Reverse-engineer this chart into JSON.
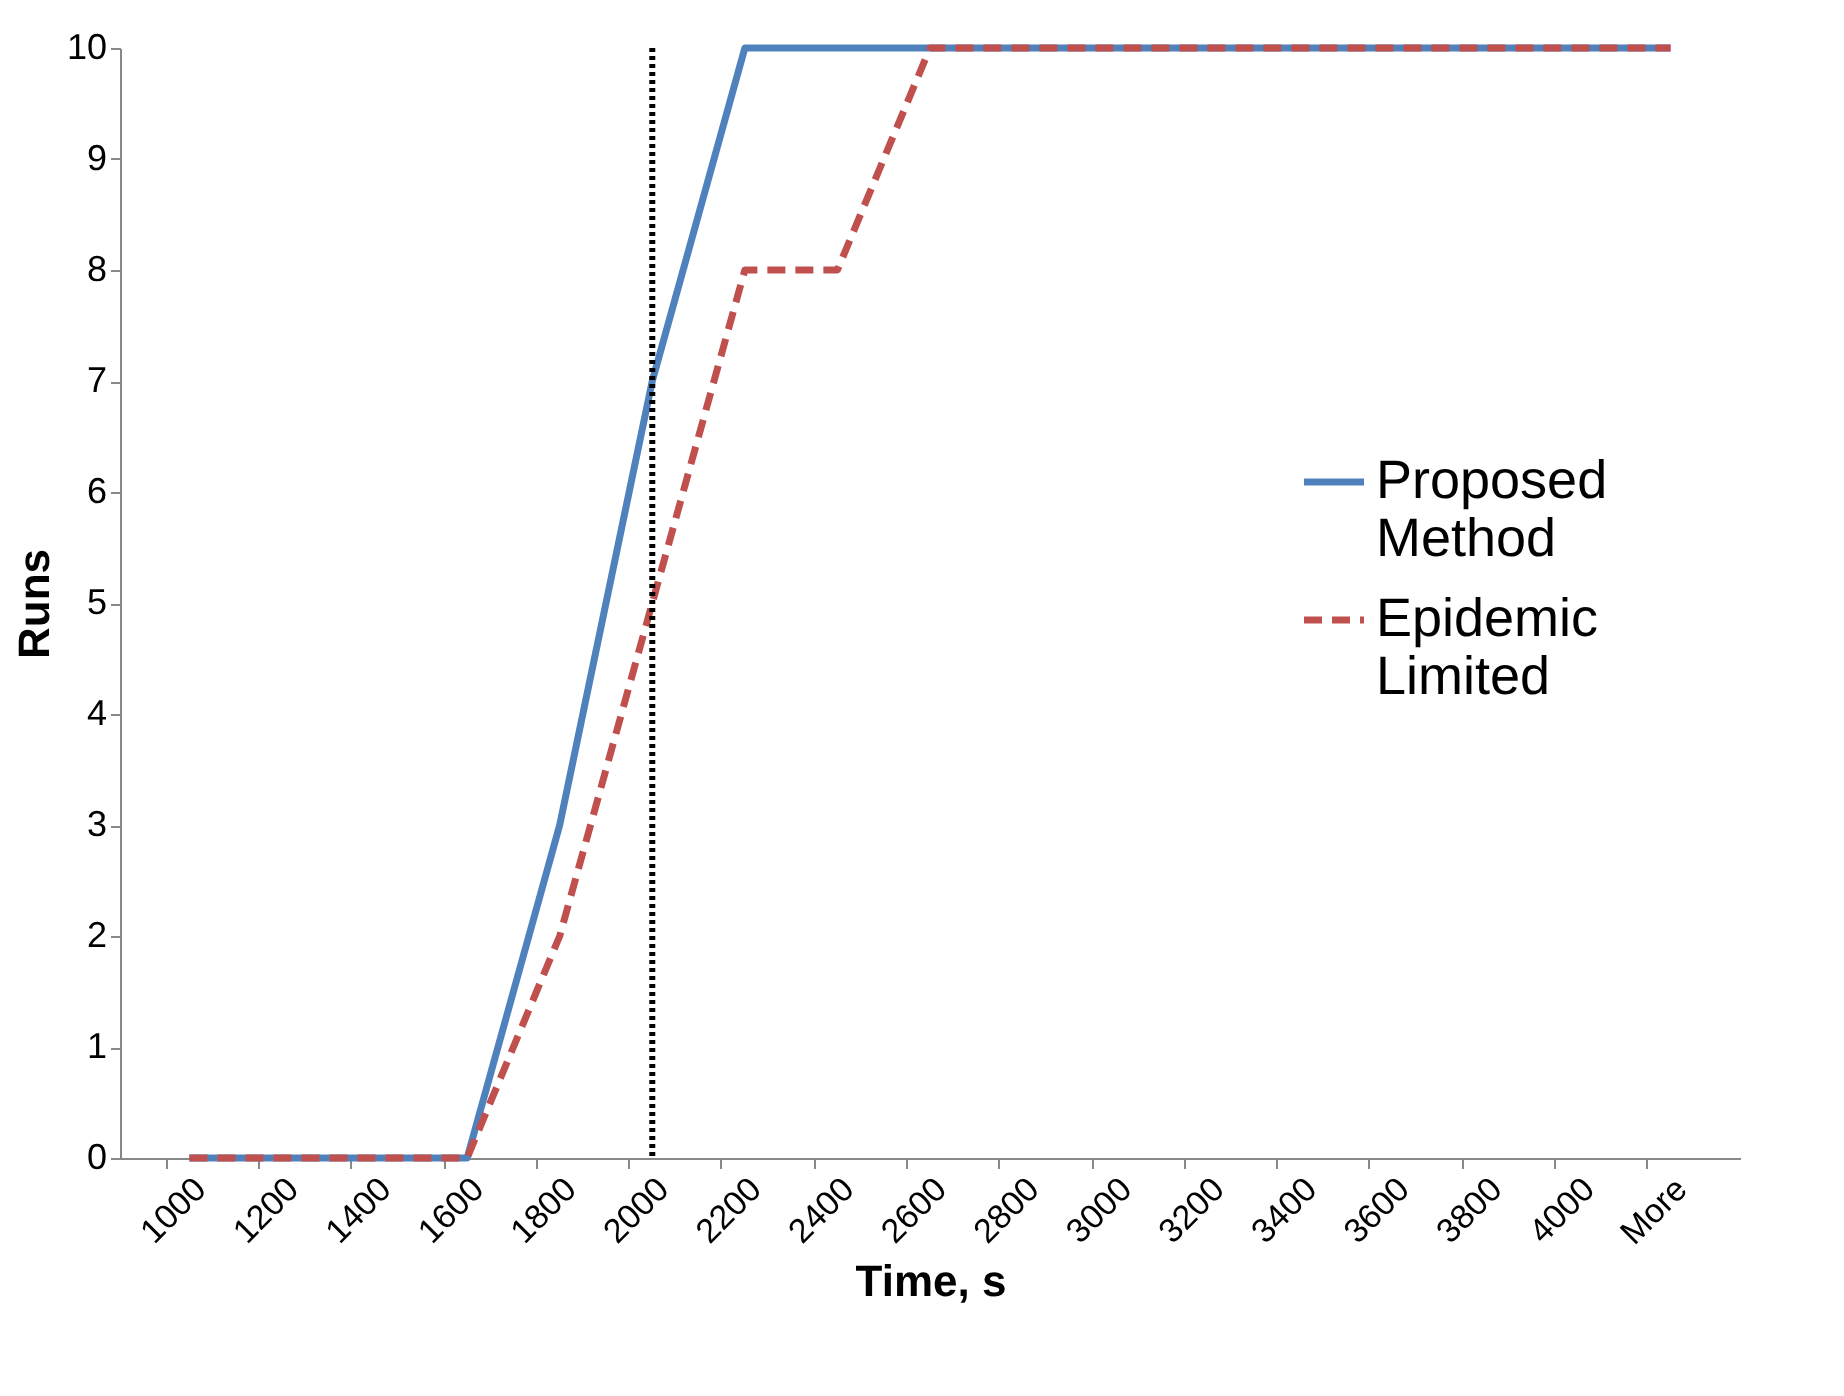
{
  "chart_data": {
    "type": "line",
    "xlabel": "Time, s",
    "ylabel": "Runs",
    "categories": [
      "1000",
      "1200",
      "1400",
      "1600",
      "1800",
      "2000",
      "2200",
      "2400",
      "2600",
      "2800",
      "3000",
      "3200",
      "3400",
      "3600",
      "3800",
      "4000",
      "More"
    ],
    "series": [
      {
        "name": "Proposed Method",
        "color": "#4f81bd",
        "line_style": "solid",
        "values": [
          0,
          0,
          0,
          0,
          3,
          7,
          10,
          10,
          10,
          10,
          10,
          10,
          10,
          10,
          10,
          10,
          10
        ]
      },
      {
        "name": "Epidemic Limited",
        "color": "#c0504d",
        "line_style": "dashed",
        "values": [
          0,
          0,
          0,
          0,
          2,
          5,
          8,
          8,
          10,
          10,
          10,
          10,
          10,
          10,
          10,
          10,
          10
        ]
      }
    ],
    "ylim": [
      0,
      10
    ],
    "yticks": [
      0,
      1,
      2,
      3,
      4,
      5,
      6,
      7,
      8,
      9,
      10
    ],
    "grid": false,
    "legend": "right",
    "marker": "none",
    "ref_lines": [
      {
        "axis": "x",
        "value": "2000",
        "color": "#000000",
        "line_style": "dotted"
      }
    ]
  }
}
